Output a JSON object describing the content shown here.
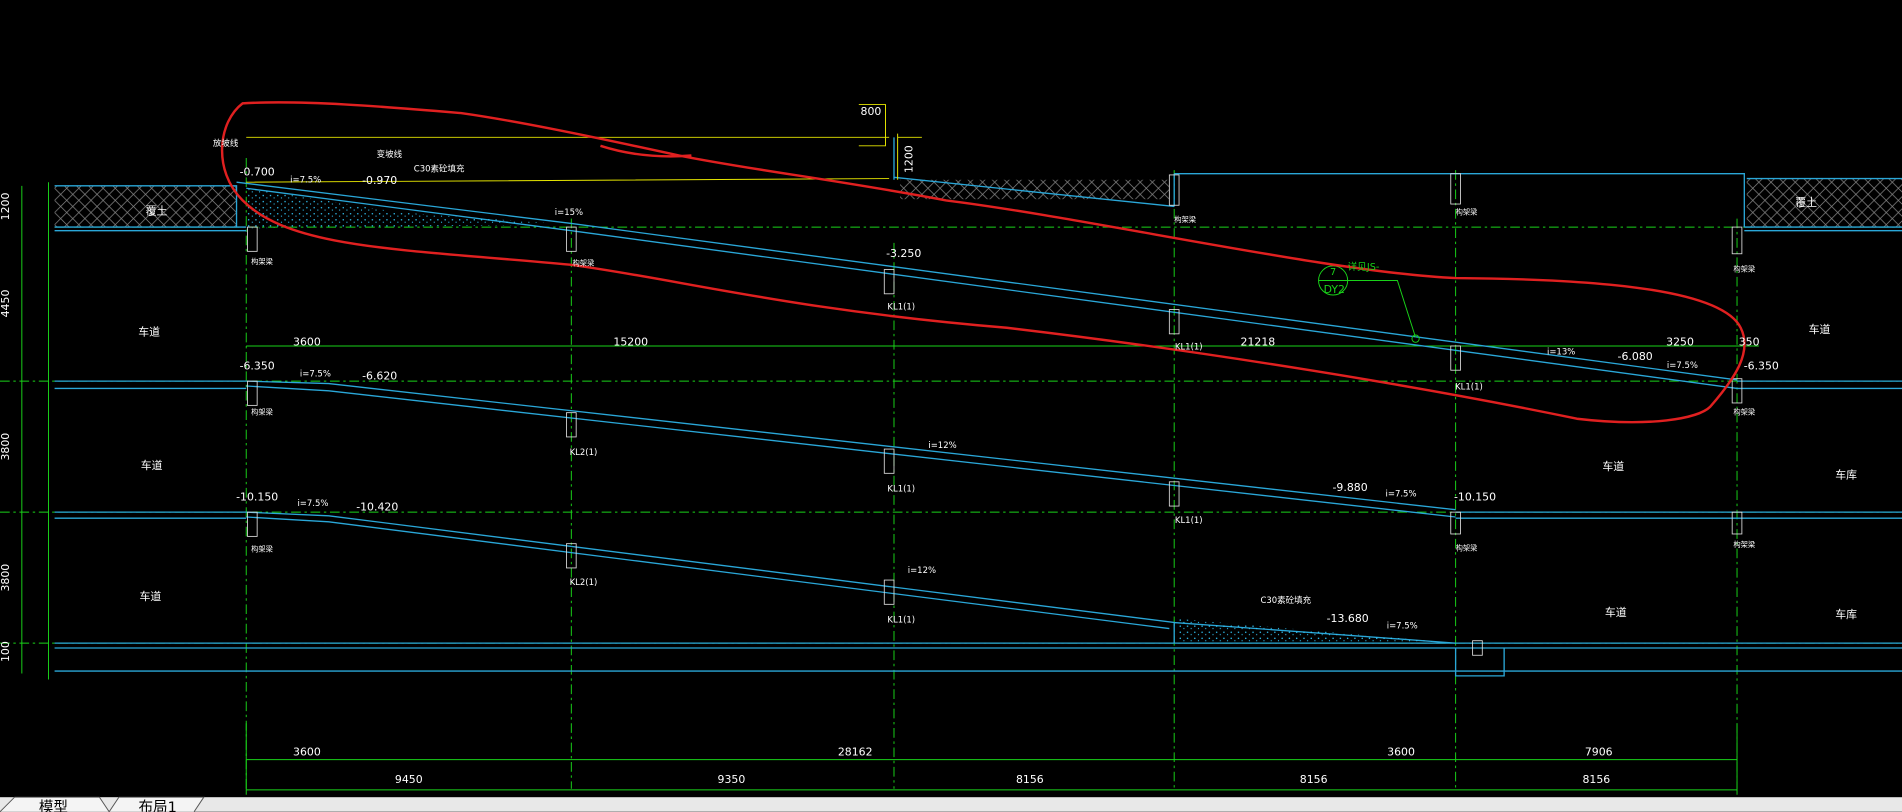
{
  "drawing": {
    "labels": [
      "800",
      "1200",
      "放坡线",
      "-0.700",
      "i=7.5%",
      "变坡线",
      "-0.970",
      "C30素砼填充",
      "覆土",
      "覆土",
      "i=15%",
      "-3.250",
      "7",
      "详见JS-",
      "DY2",
      "3600",
      "15200",
      "21218",
      "3250",
      "350",
      "i=13%",
      "-6.080",
      "i=7.5%",
      "-6.350",
      "-6.350",
      "i=7.5%",
      "-6.620",
      "车道",
      "车道",
      "车道",
      "车道",
      "车道",
      "车道",
      "车库",
      "车库",
      "KL1(1)",
      "KL1(1)",
      "KL1(1)",
      "KL2(1)",
      "KL1(1)",
      "KL1(1)",
      "KL2(1)",
      "KL1(1)",
      "i=12%",
      "-9.880",
      "i=7.5%",
      "-10.150",
      "-10.150",
      "i=7.5%",
      "-10.420",
      "i=12%",
      "C30素砼填充",
      "-13.680",
      "i=7.5%",
      "1200",
      "4450",
      "3800",
      "3800",
      "100",
      "3600",
      "28162",
      "3600",
      "7906",
      "9450",
      "9350",
      "8156",
      "8156",
      "8156",
      "构架梁",
      "构架梁",
      "构架梁",
      "构架梁",
      "构架梁",
      "构架梁",
      "构架梁",
      "构架梁",
      "构架梁",
      "构架梁"
    ]
  },
  "tabs": [
    "模型",
    "布局1"
  ]
}
